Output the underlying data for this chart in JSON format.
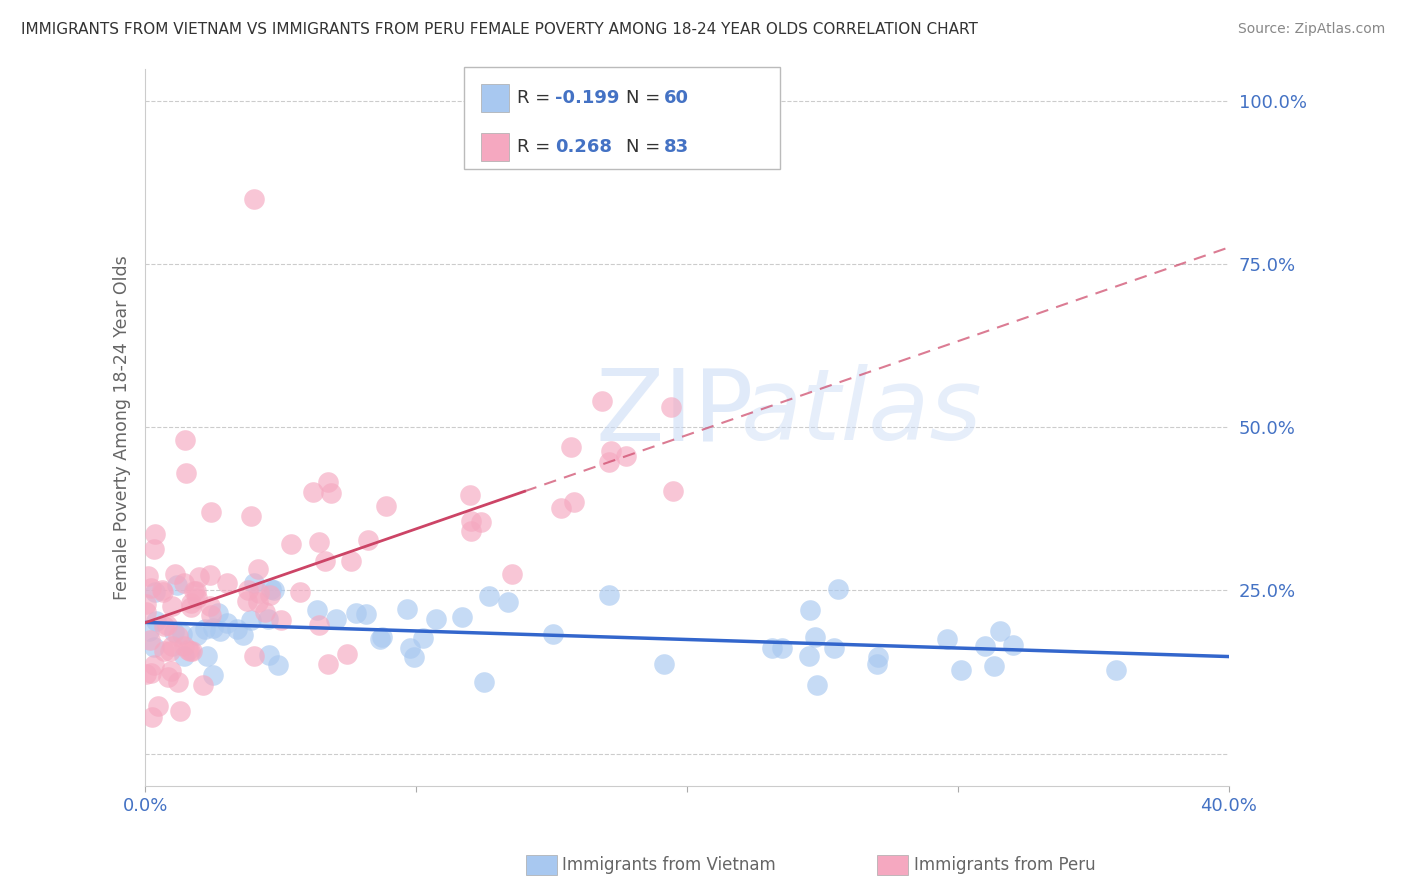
{
  "title": "IMMIGRANTS FROM VIETNAM VS IMMIGRANTS FROM PERU FEMALE POVERTY AMONG 18-24 YEAR OLDS CORRELATION CHART",
  "source": "Source: ZipAtlas.com",
  "ylabel": "Female Poverty Among 18-24 Year Olds",
  "xlim": [
    0.0,
    0.4
  ],
  "ylim": [
    -0.05,
    1.05
  ],
  "legend_vietnam": "Immigrants from Vietnam",
  "legend_peru": "Immigrants from Peru",
  "vietnam_color": "#a8c8f0",
  "peru_color": "#f5a8c0",
  "trendline_vietnam_color": "#3366cc",
  "trendline_peru_color": "#cc4466",
  "R_vietnam": -0.199,
  "N_vietnam": 60,
  "R_peru": 0.268,
  "N_peru": 83,
  "watermark_zip": "ZIP",
  "watermark_atlas": "atlas",
  "background_color": "#ffffff",
  "grid_color": "#cccccc",
  "title_color": "#333333",
  "axis_label_color": "#666666",
  "tick_label_color": "#4472c4",
  "legend_text_color": "#333333"
}
